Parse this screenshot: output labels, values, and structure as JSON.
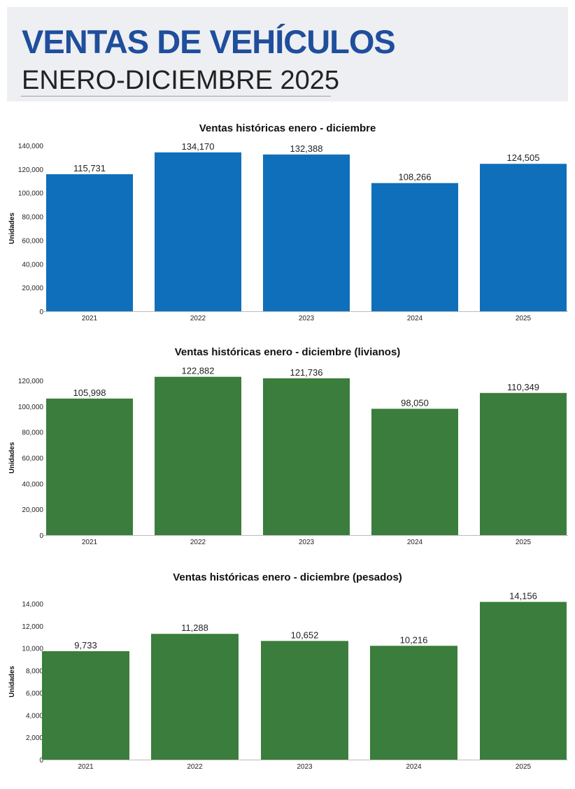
{
  "header": {
    "title": "VENTAS DE VEHÍCULOS",
    "subtitle": "ENERO-DICIEMBRE 2025"
  },
  "chart_data": [
    {
      "type": "bar",
      "title": "Ventas históricas enero - diciembre",
      "ylabel": "Unidades",
      "categories": [
        "2021",
        "2022",
        "2023",
        "2024",
        "2025"
      ],
      "values": [
        115731,
        134170,
        132388,
        108266,
        124505
      ],
      "data_labels": [
        "115,731",
        "134,170",
        "132,388",
        "108,266",
        "124,505"
      ],
      "yticks": [
        0,
        20000,
        40000,
        60000,
        80000,
        100000,
        120000,
        140000
      ],
      "ytick_labels": [
        "0",
        "20,000",
        "40,000",
        "60,000",
        "80,000",
        "100,000",
        "120,000",
        "140,000"
      ],
      "ylim": [
        0,
        140000
      ],
      "color": "#0f6fba",
      "grid": false
    },
    {
      "type": "bar",
      "title": "Ventas históricas enero - diciembre (livianos)",
      "ylabel": "Unidades",
      "categories": [
        "2021",
        "2022",
        "2023",
        "2024",
        "2025"
      ],
      "values": [
        105998,
        122882,
        121736,
        98050,
        110349
      ],
      "data_labels": [
        "105,998",
        "122,882",
        "121,736",
        "98,050",
        "110,349"
      ],
      "yticks": [
        0,
        20000,
        40000,
        60000,
        80000,
        100000,
        120000
      ],
      "ytick_labels": [
        "0",
        "20,000",
        "40,000",
        "60,000",
        "80,000",
        "100,000",
        "120,000"
      ],
      "ylim": [
        0,
        120000
      ],
      "color": "#3b7d3c",
      "grid": false
    },
    {
      "type": "bar",
      "title": "Ventas históricas enero - diciembre (pesados)",
      "ylabel": "Unidades",
      "categories": [
        "2021",
        "2022",
        "2023",
        "2024",
        "2025"
      ],
      "values": [
        9733,
        11288,
        10652,
        10216,
        14156
      ],
      "data_labels": [
        "9,733",
        "11,288",
        "10,652",
        "10,216",
        "14,156"
      ],
      "yticks": [
        0,
        2000,
        4000,
        6000,
        8000,
        10000,
        12000,
        14000
      ],
      "ytick_labels": [
        "0",
        "2,000",
        "4,000",
        "6,000",
        "8,000",
        "10,000",
        "12,000",
        "14,000"
      ],
      "ylim": [
        0,
        14000
      ],
      "color": "#3b7d3c",
      "grid": false
    }
  ]
}
